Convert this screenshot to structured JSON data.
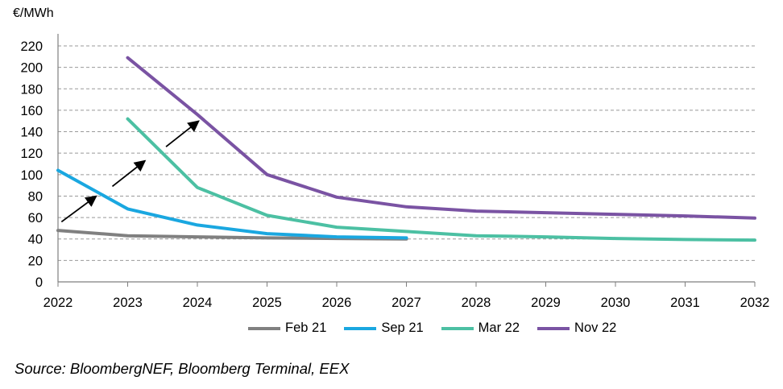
{
  "unit_label": "€/MWh",
  "source": "Source: BloombergNEF, Bloomberg Terminal, EEX",
  "colors": {
    "grid": "#999999",
    "axis": "#7f7f7f",
    "arrow": "#000000"
  },
  "chart_data": {
    "type": "line",
    "ylabel": "€/MWh",
    "xlim": [
      2022,
      2032
    ],
    "ylim": [
      0,
      220
    ],
    "x_ticks": [
      "2022",
      "2023",
      "2024",
      "2025",
      "2026",
      "2027",
      "2028",
      "2029",
      "2030",
      "2031",
      "2032"
    ],
    "y_ticks": [
      "0",
      "20",
      "40",
      "60",
      "80",
      "100",
      "120",
      "140",
      "160",
      "180",
      "200",
      "220"
    ],
    "grid": "horizontal dashed",
    "legend_position": "bottom",
    "series": [
      {
        "name": "Feb 21",
        "color": "#808080",
        "x": [
          2022,
          2023,
          2024,
          2025,
          2026,
          2027
        ],
        "y": [
          48,
          43,
          42,
          41,
          40.5,
          40
        ]
      },
      {
        "name": "Sep 21",
        "color": "#1aa7e0",
        "x": [
          2022,
          2023,
          2024,
          2025,
          2026,
          2027
        ],
        "y": [
          104,
          68,
          53,
          45,
          42,
          41
        ]
      },
      {
        "name": "Mar 22",
        "color": "#4cc0a3",
        "x": [
          2023,
          2024,
          2025,
          2026,
          2027,
          2028,
          2029,
          2030,
          2031,
          2032
        ],
        "y": [
          152,
          88,
          62,
          51,
          47,
          43,
          42,
          40.5,
          39.5,
          39
        ]
      },
      {
        "name": "Nov 22",
        "color": "#7a53a3",
        "x": [
          2023,
          2024,
          2025,
          2026,
          2027,
          2028,
          2029,
          2030,
          2031,
          2032
        ],
        "y": [
          209,
          156,
          100,
          79,
          70,
          66,
          64.5,
          63,
          61.5,
          59.5
        ]
      }
    ],
    "annotations": [
      {
        "type": "arrow",
        "from": [
          2022.05,
          56
        ],
        "to": [
          2022.55,
          80
        ]
      },
      {
        "type": "arrow",
        "from": [
          2022.78,
          89
        ],
        "to": [
          2023.25,
          113
        ]
      },
      {
        "type": "arrow",
        "from": [
          2023.55,
          126
        ],
        "to": [
          2024.02,
          150
        ]
      }
    ]
  }
}
